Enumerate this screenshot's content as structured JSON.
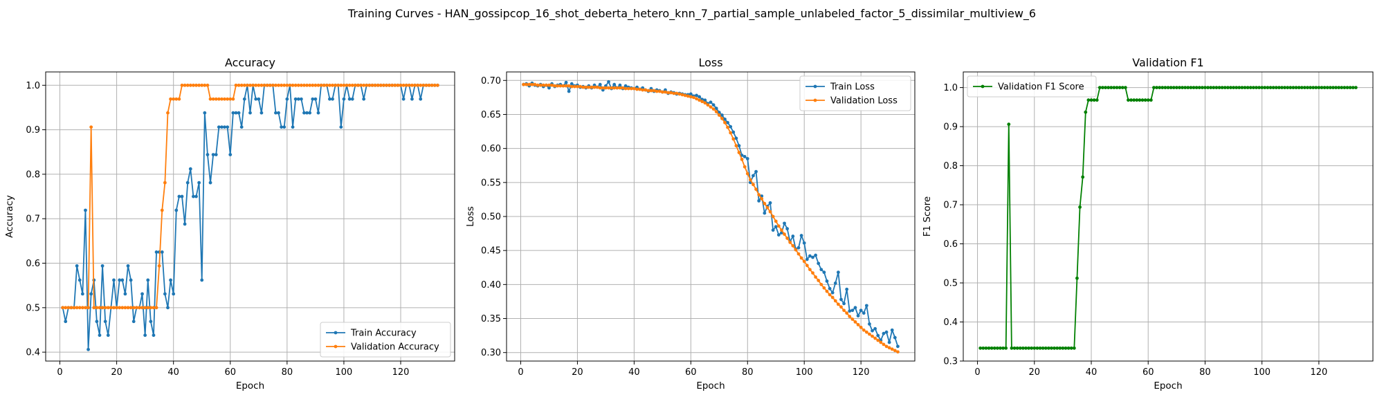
{
  "suptitle": "Training Curves - HAN_gossipcop_16_shot_deberta_hetero_knn_7_partial_sample_unlabeled_factor_5_dissimilar_multiview_6",
  "colors": {
    "train": "#1f77b4",
    "validation": "#ff7f0e",
    "f1": "#008000"
  },
  "chart_data": [
    {
      "type": "line",
      "title": "Accuracy",
      "xlabel": "Epoch",
      "ylabel": "Accuracy",
      "xlim": [
        -5,
        139
      ],
      "ylim": [
        0.38,
        1.03
      ],
      "xticks": [
        0,
        20,
        40,
        60,
        80,
        100,
        120
      ],
      "yticks": [
        0.4,
        0.5,
        0.6,
        0.7,
        0.8,
        0.9,
        1.0
      ],
      "grid": true,
      "legend": "lower right",
      "x": [
        1,
        2,
        3,
        4,
        5,
        6,
        7,
        8,
        9,
        10,
        11,
        12,
        13,
        14,
        15,
        16,
        17,
        18,
        19,
        20,
        21,
        22,
        23,
        24,
        25,
        26,
        27,
        28,
        29,
        30,
        31,
        32,
        33,
        34,
        35,
        36,
        37,
        38,
        39,
        40,
        41,
        42,
        43,
        44,
        45,
        46,
        47,
        48,
        49,
        50,
        51,
        52,
        53,
        54,
        55,
        56,
        57,
        58,
        59,
        60,
        61,
        62,
        63,
        64,
        65,
        66,
        67,
        68,
        69,
        70,
        71,
        72,
        73,
        74,
        75,
        76,
        77,
        78,
        79,
        80,
        81,
        82,
        83,
        84,
        85,
        86,
        87,
        88,
        89,
        90,
        91,
        92,
        93,
        94,
        95,
        96,
        97,
        98,
        99,
        100,
        101,
        102,
        103,
        104,
        105,
        106,
        107,
        108,
        109,
        110,
        111,
        112,
        113,
        114,
        115,
        116,
        117,
        118,
        119,
        120,
        121,
        122,
        123,
        124,
        125,
        126,
        127,
        128,
        129,
        130,
        131,
        132,
        133
      ],
      "series": [
        {
          "name": "Train Accuracy",
          "color": "#1f77b4",
          "values": [
            0.5,
            0.469,
            0.5,
            0.5,
            0.5,
            0.594,
            0.562,
            0.531,
            0.719,
            0.406,
            0.531,
            0.562,
            0.469,
            0.438,
            0.594,
            0.469,
            0.438,
            0.5,
            0.562,
            0.5,
            0.562,
            0.562,
            0.531,
            0.594,
            0.562,
            0.469,
            0.5,
            0.5,
            0.531,
            0.438,
            0.562,
            0.469,
            0.438,
            0.625,
            0.625,
            0.625,
            0.531,
            0.5,
            0.562,
            0.531,
            0.719,
            0.75,
            0.75,
            0.688,
            0.781,
            0.812,
            0.75,
            0.75,
            0.781,
            0.562,
            0.938,
            0.844,
            0.781,
            0.844,
            0.844,
            0.906,
            0.906,
            0.906,
            0.906,
            0.844,
            0.938,
            0.938,
            0.938,
            0.906,
            0.969,
            1.0,
            0.938,
            1.0,
            0.969,
            0.969,
            0.938,
            1.0,
            1.0,
            1.0,
            1.0,
            0.938,
            0.938,
            0.906,
            0.906,
            0.969,
            1.0,
            0.906,
            0.969,
            0.969,
            0.969,
            0.938,
            0.938,
            0.938,
            0.969,
            0.969,
            0.938,
            1.0,
            1.0,
            1.0,
            0.969,
            0.969,
            1.0,
            1.0,
            0.906,
            0.969,
            1.0,
            0.969,
            0.969,
            1.0,
            1.0,
            1.0,
            0.969,
            1.0,
            1.0,
            1.0,
            1.0,
            1.0,
            1.0,
            1.0,
            1.0,
            1.0,
            1.0,
            1.0,
            1.0,
            1.0,
            0.969,
            1.0,
            1.0,
            0.969,
            1.0,
            1.0,
            0.969,
            1.0,
            1.0,
            1.0,
            1.0,
            1.0,
            1.0
          ]
        },
        {
          "name": "Validation Accuracy",
          "color": "#ff7f0e",
          "values": [
            0.5,
            0.5,
            0.5,
            0.5,
            0.5,
            0.5,
            0.5,
            0.5,
            0.5,
            0.5,
            0.906,
            0.5,
            0.5,
            0.5,
            0.5,
            0.5,
            0.5,
            0.5,
            0.5,
            0.5,
            0.5,
            0.5,
            0.5,
            0.5,
            0.5,
            0.5,
            0.5,
            0.5,
            0.5,
            0.5,
            0.5,
            0.5,
            0.5,
            0.5,
            0.594,
            0.719,
            0.781,
            0.938,
            0.969,
            0.969,
            0.969,
            0.969,
            1.0,
            1.0,
            1.0,
            1.0,
            1.0,
            1.0,
            1.0,
            1.0,
            1.0,
            1.0,
            0.969,
            0.969,
            0.969,
            0.969,
            0.969,
            0.969,
            0.969,
            0.969,
            0.969,
            1.0,
            1.0,
            1.0,
            1.0,
            1.0,
            1.0,
            1.0,
            1.0,
            1.0,
            1.0,
            1.0,
            1.0,
            1.0,
            1.0,
            1.0,
            1.0,
            1.0,
            1.0,
            1.0,
            1.0,
            1.0,
            1.0,
            1.0,
            1.0,
            1.0,
            1.0,
            1.0,
            1.0,
            1.0,
            1.0,
            1.0,
            1.0,
            1.0,
            1.0,
            1.0,
            1.0,
            1.0,
            1.0,
            1.0,
            1.0,
            1.0,
            1.0,
            1.0,
            1.0,
            1.0,
            1.0,
            1.0,
            1.0,
            1.0,
            1.0,
            1.0,
            1.0,
            1.0,
            1.0,
            1.0,
            1.0,
            1.0,
            1.0,
            1.0,
            1.0,
            1.0,
            1.0,
            1.0,
            1.0,
            1.0,
            1.0,
            1.0,
            1.0,
            1.0,
            1.0,
            1.0,
            1.0
          ]
        }
      ]
    },
    {
      "type": "line",
      "title": "Loss",
      "xlabel": "Epoch",
      "ylabel": "Loss",
      "xlim": [
        -5,
        139
      ],
      "ylim": [
        0.2875,
        0.7125
      ],
      "xticks": [
        0,
        20,
        40,
        60,
        80,
        100,
        120
      ],
      "yticks": [
        0.3,
        0.35,
        0.4,
        0.45,
        0.5,
        0.55,
        0.6,
        0.65,
        0.7
      ],
      "ytick_labels": [
        "0.30",
        "0.35",
        "0.40",
        "0.45",
        "0.50",
        "0.55",
        "0.60",
        "0.65",
        "0.70"
      ],
      "grid": true,
      "legend": "upper right",
      "x": [
        1,
        2,
        3,
        4,
        5,
        6,
        7,
        8,
        9,
        10,
        11,
        12,
        13,
        14,
        15,
        16,
        17,
        18,
        19,
        20,
        21,
        22,
        23,
        24,
        25,
        26,
        27,
        28,
        29,
        30,
        31,
        32,
        33,
        34,
        35,
        36,
        37,
        38,
        39,
        40,
        41,
        42,
        43,
        44,
        45,
        46,
        47,
        48,
        49,
        50,
        51,
        52,
        53,
        54,
        55,
        56,
        57,
        58,
        59,
        60,
        61,
        62,
        63,
        64,
        65,
        66,
        67,
        68,
        69,
        70,
        71,
        72,
        73,
        74,
        75,
        76,
        77,
        78,
        79,
        80,
        81,
        82,
        83,
        84,
        85,
        86,
        87,
        88,
        89,
        90,
        91,
        92,
        93,
        94,
        95,
        96,
        97,
        98,
        99,
        100,
        101,
        102,
        103,
        104,
        105,
        106,
        107,
        108,
        109,
        110,
        111,
        112,
        113,
        114,
        115,
        116,
        117,
        118,
        119,
        120,
        121,
        122,
        123,
        124,
        125,
        126,
        127,
        128,
        129,
        130,
        131,
        132,
        133
      ],
      "series": [
        {
          "name": "Train Loss",
          "color": "#1f77b4",
          "values": [
            0.694,
            0.695,
            0.692,
            0.696,
            0.693,
            0.692,
            0.694,
            0.691,
            0.693,
            0.689,
            0.695,
            0.691,
            0.693,
            0.694,
            0.692,
            0.697,
            0.684,
            0.695,
            0.692,
            0.693,
            0.69,
            0.691,
            0.689,
            0.692,
            0.689,
            0.693,
            0.69,
            0.694,
            0.686,
            0.692,
            0.698,
            0.688,
            0.694,
            0.689,
            0.693,
            0.688,
            0.692,
            0.69,
            0.689,
            0.688,
            0.69,
            0.687,
            0.689,
            0.686,
            0.684,
            0.688,
            0.684,
            0.686,
            0.685,
            0.683,
            0.686,
            0.681,
            0.683,
            0.682,
            0.68,
            0.681,
            0.68,
            0.679,
            0.679,
            0.68,
            0.677,
            0.678,
            0.676,
            0.672,
            0.671,
            0.666,
            0.668,
            0.664,
            0.659,
            0.653,
            0.649,
            0.643,
            0.638,
            0.632,
            0.624,
            0.615,
            0.604,
            0.59,
            0.588,
            0.585,
            0.55,
            0.56,
            0.566,
            0.523,
            0.53,
            0.505,
            0.515,
            0.52,
            0.48,
            0.485,
            0.473,
            0.476,
            0.49,
            0.482,
            0.463,
            0.471,
            0.452,
            0.454,
            0.472,
            0.461,
            0.437,
            0.442,
            0.44,
            0.443,
            0.431,
            0.422,
            0.418,
            0.405,
            0.394,
            0.388,
            0.402,
            0.418,
            0.378,
            0.372,
            0.393,
            0.361,
            0.362,
            0.366,
            0.354,
            0.362,
            0.358,
            0.369,
            0.342,
            0.332,
            0.335,
            0.325,
            0.318,
            0.328,
            0.33,
            0.315,
            0.333,
            0.322,
            0.309
          ]
        },
        {
          "name": "Validation Loss",
          "color": "#ff7f0e",
          "values": [
            0.694,
            0.694,
            0.694,
            0.694,
            0.694,
            0.693,
            0.693,
            0.693,
            0.693,
            0.693,
            0.693,
            0.692,
            0.692,
            0.692,
            0.692,
            0.692,
            0.692,
            0.691,
            0.691,
            0.691,
            0.691,
            0.69,
            0.69,
            0.69,
            0.69,
            0.69,
            0.69,
            0.689,
            0.689,
            0.689,
            0.689,
            0.689,
            0.689,
            0.689,
            0.689,
            0.689,
            0.688,
            0.688,
            0.688,
            0.688,
            0.687,
            0.687,
            0.686,
            0.686,
            0.685,
            0.685,
            0.685,
            0.684,
            0.684,
            0.683,
            0.683,
            0.682,
            0.682,
            0.681,
            0.681,
            0.68,
            0.679,
            0.678,
            0.677,
            0.676,
            0.675,
            0.673,
            0.671,
            0.669,
            0.667,
            0.664,
            0.661,
            0.658,
            0.654,
            0.649,
            0.644,
            0.638,
            0.631,
            0.623,
            0.614,
            0.604,
            0.594,
            0.584,
            0.573,
            0.563,
            0.554,
            0.547,
            0.54,
            0.532,
            0.526,
            0.519,
            0.513,
            0.507,
            0.5,
            0.493,
            0.486,
            0.48,
            0.474,
            0.468,
            0.462,
            0.457,
            0.451,
            0.445,
            0.439,
            0.434,
            0.428,
            0.422,
            0.417,
            0.411,
            0.406,
            0.4,
            0.395,
            0.39,
            0.385,
            0.381,
            0.376,
            0.371,
            0.367,
            0.362,
            0.358,
            0.353,
            0.349,
            0.345,
            0.341,
            0.337,
            0.333,
            0.33,
            0.327,
            0.324,
            0.321,
            0.318,
            0.315,
            0.312,
            0.309,
            0.307,
            0.305,
            0.303,
            0.301
          ]
        }
      ]
    },
    {
      "type": "line",
      "title": "Validation F1",
      "xlabel": "Epoch",
      "ylabel": "F1 Score",
      "xlim": [
        -5,
        139
      ],
      "ylim": [
        0.3,
        1.04
      ],
      "xticks": [
        0,
        20,
        40,
        60,
        80,
        100,
        120
      ],
      "yticks": [
        0.3,
        0.4,
        0.5,
        0.6,
        0.7,
        0.8,
        0.9,
        1.0
      ],
      "grid": true,
      "legend": "upper left",
      "x": [
        1,
        2,
        3,
        4,
        5,
        6,
        7,
        8,
        9,
        10,
        11,
        12,
        13,
        14,
        15,
        16,
        17,
        18,
        19,
        20,
        21,
        22,
        23,
        24,
        25,
        26,
        27,
        28,
        29,
        30,
        31,
        32,
        33,
        34,
        35,
        36,
        37,
        38,
        39,
        40,
        41,
        42,
        43,
        44,
        45,
        46,
        47,
        48,
        49,
        50,
        51,
        52,
        53,
        54,
        55,
        56,
        57,
        58,
        59,
        60,
        61,
        62,
        63,
        64,
        65,
        66,
        67,
        68,
        69,
        70,
        71,
        72,
        73,
        74,
        75,
        76,
        77,
        78,
        79,
        80,
        81,
        82,
        83,
        84,
        85,
        86,
        87,
        88,
        89,
        90,
        91,
        92,
        93,
        94,
        95,
        96,
        97,
        98,
        99,
        100,
        101,
        102,
        103,
        104,
        105,
        106,
        107,
        108,
        109,
        110,
        111,
        112,
        113,
        114,
        115,
        116,
        117,
        118,
        119,
        120,
        121,
        122,
        123,
        124,
        125,
        126,
        127,
        128,
        129,
        130,
        131,
        132,
        133
      ],
      "series": [
        {
          "name": "Validation F1 Score",
          "color": "#008000",
          "values": [
            0.333,
            0.333,
            0.333,
            0.333,
            0.333,
            0.333,
            0.333,
            0.333,
            0.333,
            0.333,
            0.906,
            0.333,
            0.333,
            0.333,
            0.333,
            0.333,
            0.333,
            0.333,
            0.333,
            0.333,
            0.333,
            0.333,
            0.333,
            0.333,
            0.333,
            0.333,
            0.333,
            0.333,
            0.333,
            0.333,
            0.333,
            0.333,
            0.333,
            0.333,
            0.512,
            0.694,
            0.771,
            0.937,
            0.968,
            0.968,
            0.968,
            0.968,
            1.0,
            1.0,
            1.0,
            1.0,
            1.0,
            1.0,
            1.0,
            1.0,
            1.0,
            1.0,
            0.968,
            0.968,
            0.968,
            0.968,
            0.968,
            0.968,
            0.968,
            0.968,
            0.968,
            1.0,
            1.0,
            1.0,
            1.0,
            1.0,
            1.0,
            1.0,
            1.0,
            1.0,
            1.0,
            1.0,
            1.0,
            1.0,
            1.0,
            1.0,
            1.0,
            1.0,
            1.0,
            1.0,
            1.0,
            1.0,
            1.0,
            1.0,
            1.0,
            1.0,
            1.0,
            1.0,
            1.0,
            1.0,
            1.0,
            1.0,
            1.0,
            1.0,
            1.0,
            1.0,
            1.0,
            1.0,
            1.0,
            1.0,
            1.0,
            1.0,
            1.0,
            1.0,
            1.0,
            1.0,
            1.0,
            1.0,
            1.0,
            1.0,
            1.0,
            1.0,
            1.0,
            1.0,
            1.0,
            1.0,
            1.0,
            1.0,
            1.0,
            1.0,
            1.0,
            1.0,
            1.0,
            1.0,
            1.0,
            1.0,
            1.0,
            1.0,
            1.0,
            1.0,
            1.0,
            1.0,
            1.0
          ]
        }
      ]
    }
  ]
}
